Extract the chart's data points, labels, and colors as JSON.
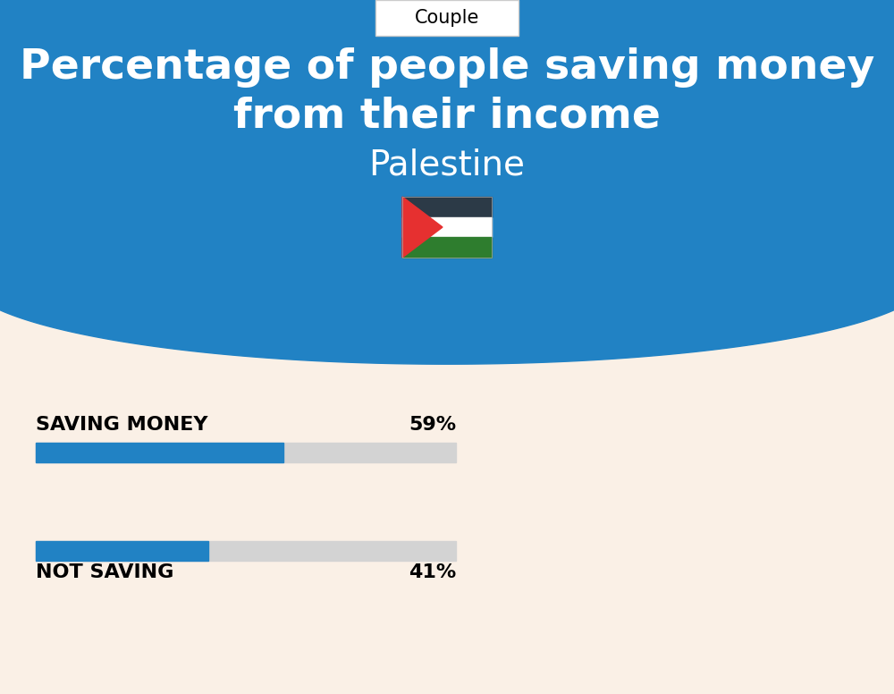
{
  "title_line1": "Percentage of people saving money",
  "title_line2": "from their income",
  "subtitle": "Palestine",
  "tab_label": "Couple",
  "bg_blue": "#2182C4",
  "bg_cream": "#FAF0E6",
  "bar_blue": "#2182C4",
  "bar_gray": "#D3D3D3",
  "saving_label": "SAVING MONEY",
  "saving_value": 59,
  "saving_pct_label": "59%",
  "not_saving_label": "NOT SAVING",
  "not_saving_value": 41,
  "not_saving_pct_label": "41%",
  "label_fontsize": 16,
  "pct_fontsize": 16,
  "title_fontsize": 34,
  "subtitle_fontsize": 28,
  "tab_fontsize": 15
}
